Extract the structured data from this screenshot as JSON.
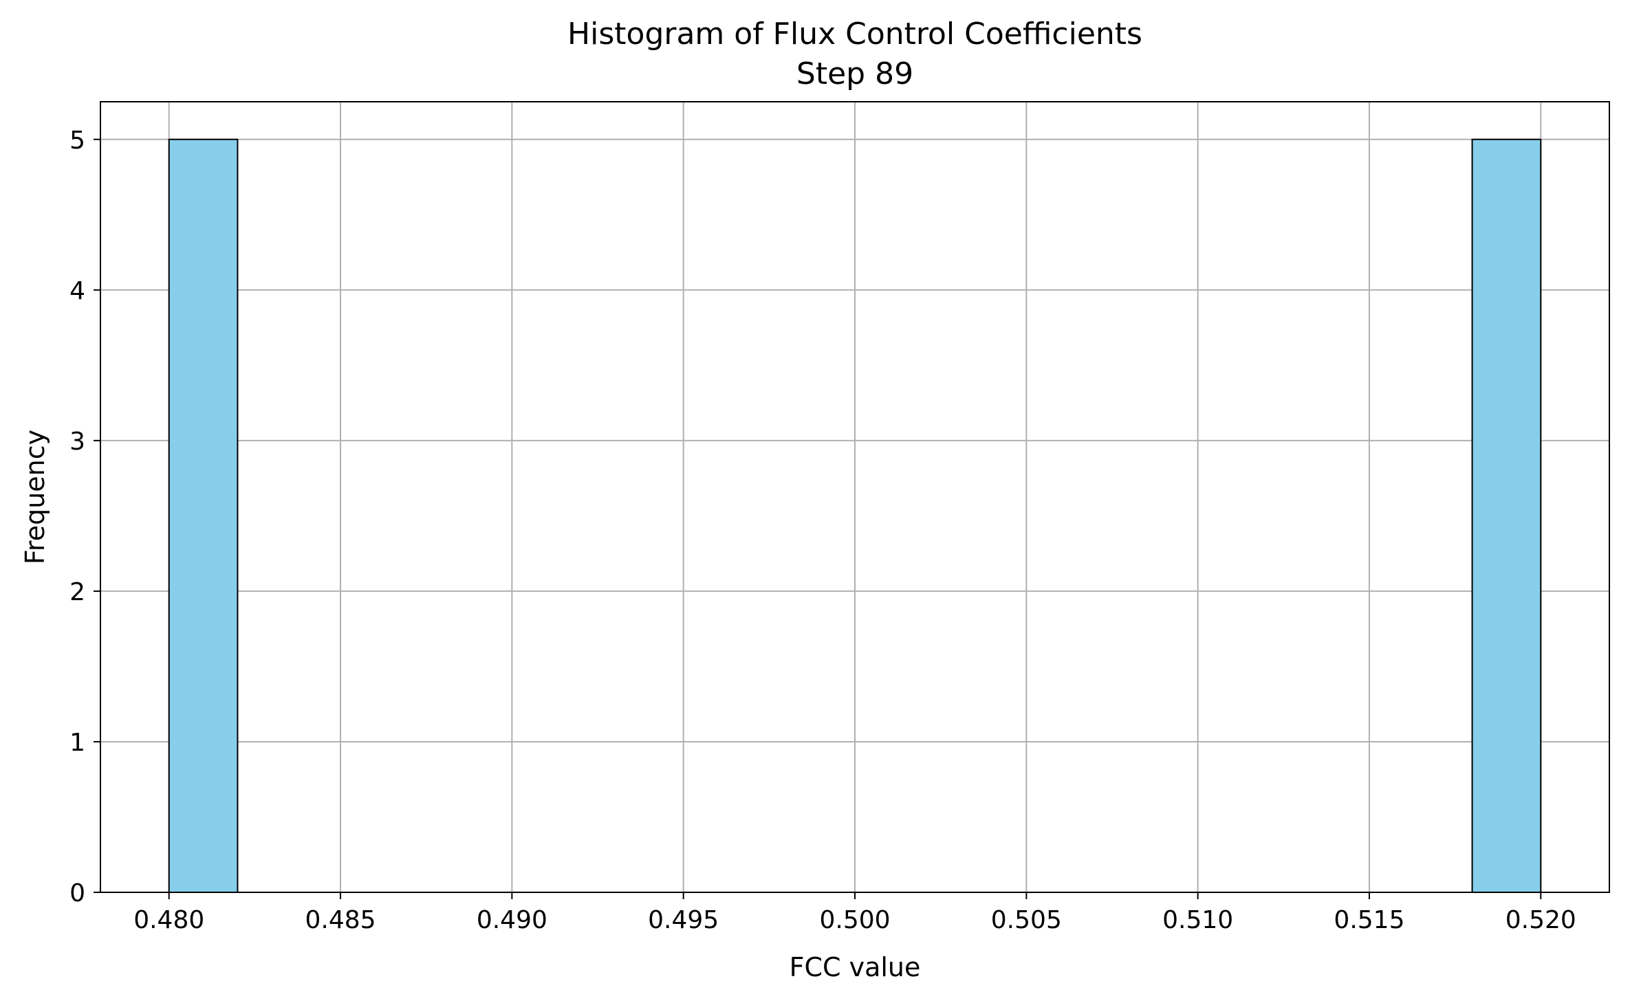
{
  "chart_data": {
    "type": "bar",
    "subtype": "histogram",
    "title": "Histogram of Flux Control Coefficients",
    "subtitle": "Step 89",
    "xlabel": "FCC value",
    "ylabel": "Frequency",
    "xlim": [
      0.478,
      0.522
    ],
    "ylim": [
      0,
      5.25
    ],
    "grid": true,
    "bar_color": "#87CEEB",
    "edge_color": "#000000",
    "grid_color": "#b0b0b0",
    "bins": [
      {
        "x0": 0.48,
        "x1": 0.482,
        "count": 5
      },
      {
        "x0": 0.518,
        "x1": 0.52,
        "count": 5
      }
    ],
    "x_ticks": [
      "0.480",
      "0.485",
      "0.490",
      "0.495",
      "0.500",
      "0.505",
      "0.510",
      "0.515",
      "0.520"
    ],
    "y_ticks": [
      "0",
      "1",
      "2",
      "3",
      "4",
      "5"
    ]
  }
}
